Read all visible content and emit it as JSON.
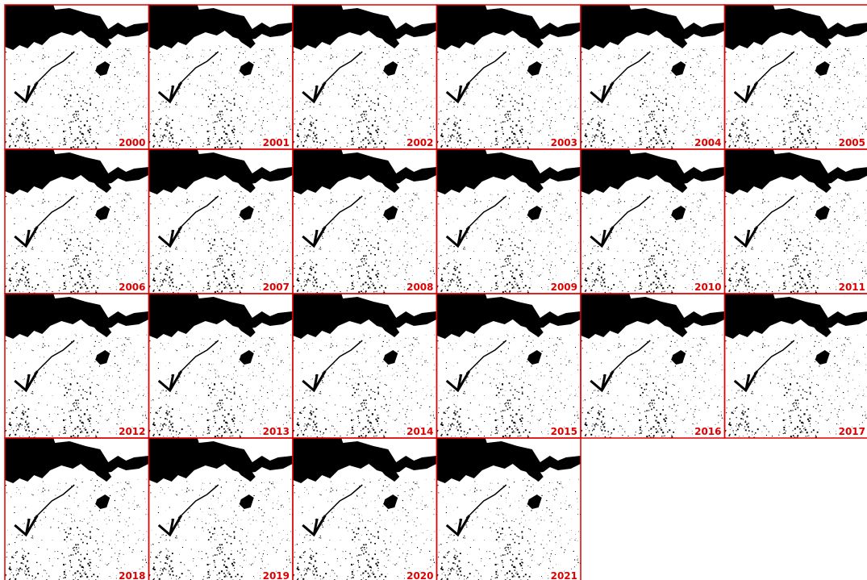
{
  "tiles": [
    {
      "label": "2000"
    },
    {
      "label": "2001"
    },
    {
      "label": "2002"
    },
    {
      "label": "2003"
    },
    {
      "label": "2004"
    },
    {
      "label": "2005"
    },
    {
      "label": "2006"
    },
    {
      "label": "2007"
    },
    {
      "label": "2008"
    },
    {
      "label": "2009"
    },
    {
      "label": "2010"
    },
    {
      "label": "2011"
    },
    {
      "label": "2012"
    },
    {
      "label": "2013"
    },
    {
      "label": "2014"
    },
    {
      "label": "2015"
    },
    {
      "label": "2016"
    },
    {
      "label": "2017"
    },
    {
      "label": "2018"
    },
    {
      "label": "2019"
    },
    {
      "label": "2020"
    },
    {
      "label": "2021"
    }
  ]
}
